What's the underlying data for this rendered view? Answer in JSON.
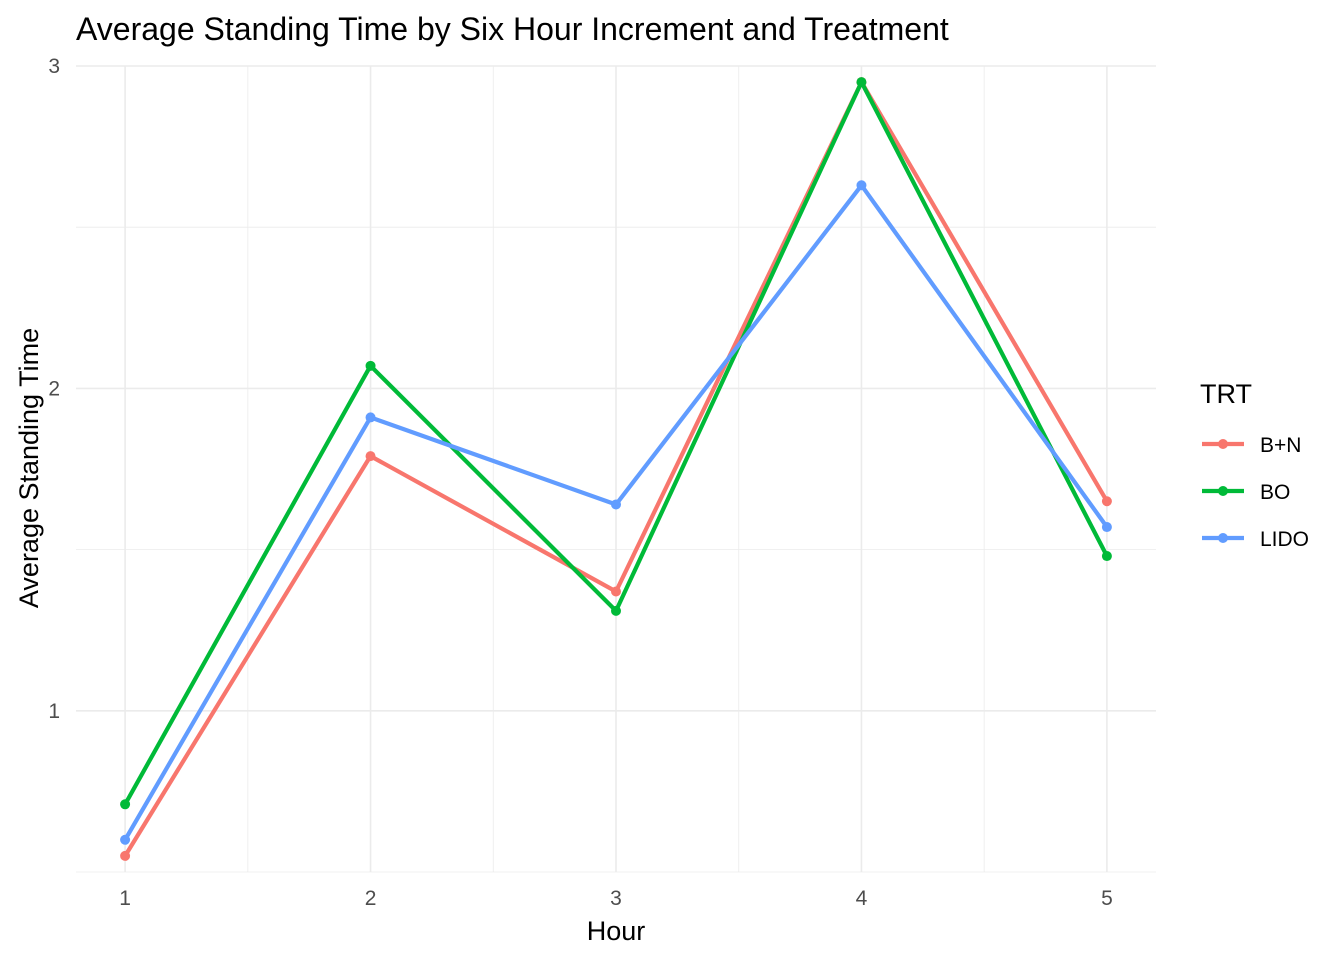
{
  "chart_data": {
    "type": "line",
    "title": "Average Standing Time by Six Hour Increment and Treatment",
    "xlabel": "Hour",
    "ylabel": "Average Standing Time",
    "x": [
      1,
      2,
      3,
      4,
      5
    ],
    "xlim": [
      0.8,
      5.2
    ],
    "ylim": [
      0.5,
      3.0
    ],
    "x_ticks": [
      1,
      2,
      3,
      4,
      5
    ],
    "y_ticks": [
      1,
      2,
      3
    ],
    "grid": true,
    "legend": {
      "title": "TRT",
      "placement": "right"
    },
    "series": [
      {
        "name": "B+N",
        "color": "#F8766D",
        "values": [
          0.55,
          1.79,
          1.37,
          2.95,
          1.65
        ]
      },
      {
        "name": "BO",
        "color": "#00BA38",
        "values": [
          0.71,
          2.07,
          1.31,
          2.95,
          1.48
        ]
      },
      {
        "name": "LIDO",
        "color": "#619CFF",
        "values": [
          0.6,
          1.91,
          1.64,
          2.63,
          1.57
        ]
      }
    ]
  }
}
